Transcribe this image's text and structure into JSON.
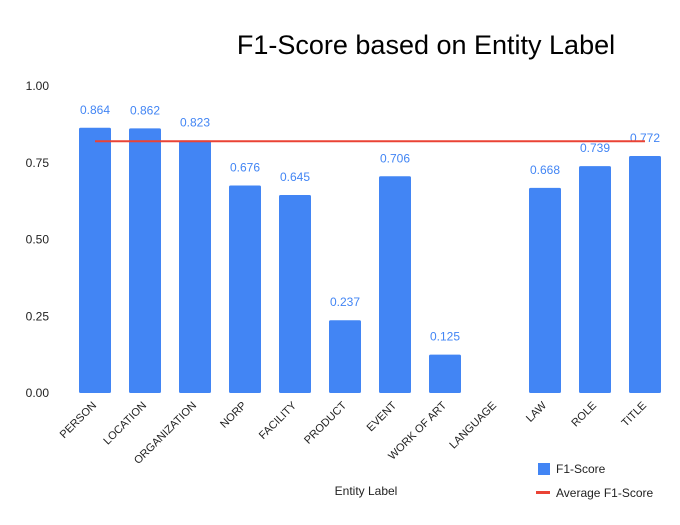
{
  "chart_data": {
    "type": "bar",
    "title": "F1-Score based on Entity Label",
    "xlabel": "Entity Label",
    "ylabel": "",
    "ylim": [
      0,
      1
    ],
    "yticks": [
      "0.00",
      "0.25",
      "0.50",
      "0.75",
      "1.00"
    ],
    "ytick_values": [
      0,
      0.25,
      0.5,
      0.75,
      1
    ],
    "grid": false,
    "legend_position": "bottom-right",
    "categories": [
      "PERSON",
      "LOCATION",
      "ORGANIZATION",
      "NORP",
      "FACILITY",
      "PRODUCT",
      "EVENT",
      "WORK OF ART",
      "LANGUAGE",
      "LAW",
      "ROLE",
      "TITLE"
    ],
    "series": [
      {
        "name": "F1-Score",
        "type": "bar",
        "color": "#4285f4",
        "values": [
          0.864,
          0.862,
          0.823,
          0.676,
          0.645,
          0.237,
          0.706,
          0.125,
          null,
          0.668,
          0.739,
          0.772
        ],
        "labels": [
          "0.864",
          "0.862",
          "0.823",
          "0.676",
          "0.645",
          "0.237",
          "0.706",
          "0.125",
          "",
          "0.668",
          "0.739",
          "0.772"
        ]
      },
      {
        "name": "Average F1-Score",
        "type": "line",
        "color": "#ea4335",
        "value": 0.82
      }
    ]
  }
}
